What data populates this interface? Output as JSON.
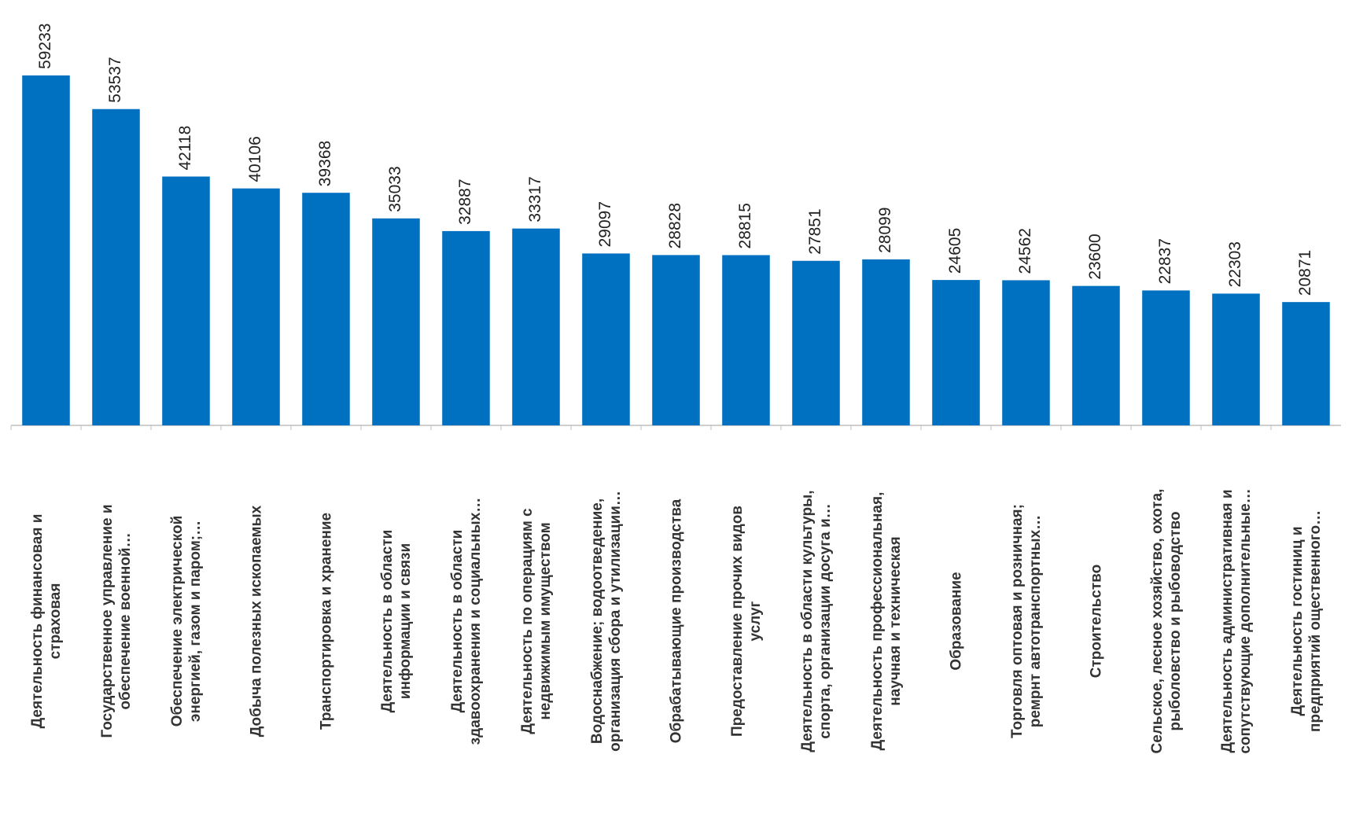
{
  "chart_data": {
    "type": "bar",
    "categories": [
      "Деятельность финансовая и\nстраховая",
      "Государственное управление и\nобеспечение военной…",
      "Обеспечение электрической\nэнергией, газом и паром;…",
      "Добыча полезных ископаемых",
      "Транспортировка и хранение",
      "Деятельность в области\nинформации и связи",
      "Деятельность в области\nздавоохранения и социальных…",
      "Деятельность  по операциям с\nнедвижимым имуществом",
      "Водоснабжение; водоотведение,\nорганизация сбора и утилизации…",
      "Обрабатывающие производства",
      "Предоставление прочих видов\nуслуг",
      "Деятельность в области культуры,\nспорта, организации досуга и…",
      "Деятельность профессиональная,\nнаучная и техническая",
      "Образование",
      "Торговля оптовая и розничная;\nремрнт автотранспортных…",
      "Строительство",
      "Сельское, лесное хозяйство, охота,\nрыболовство и рыбоводство",
      "Деятельность административная и\nсопутствующие дополнительные…",
      "Деятельность гостиниц и\nпредприятий ощественного…"
    ],
    "values": [
      59233,
      53537,
      42118,
      40106,
      39368,
      35033,
      32887,
      33317,
      29097,
      28828,
      28815,
      27851,
      28099,
      24605,
      24562,
      23600,
      22837,
      22303,
      20871
    ],
    "color": "#0070c0",
    "ylim": [
      0,
      72000
    ]
  }
}
